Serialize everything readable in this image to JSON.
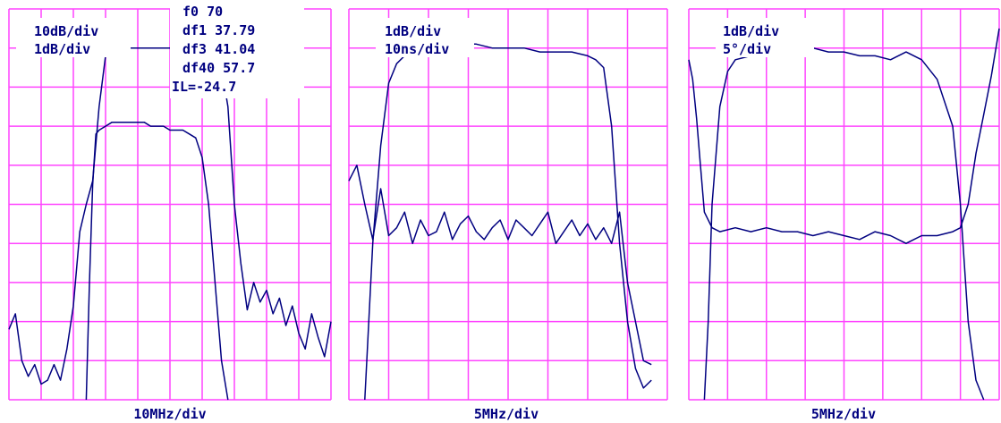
{
  "colors": {
    "grid": "#ff44ff",
    "trace": "#000080",
    "text": "#000080",
    "background": "#ffffff"
  },
  "chart_data": [
    {
      "type": "line",
      "grid": true,
      "grid_divisions": {
        "x": 10,
        "y": 10
      },
      "x_scale": "10MHz/div",
      "y_scales": [
        "10dB/div",
        "1dB/div"
      ],
      "annotations": [
        "f0 70",
        "df1 37.79",
        "df3 41.04",
        "df40 57.7",
        "IL=-24.7"
      ],
      "xlabel": "10MHz/div",
      "ylim": [
        0,
        10
      ],
      "xlim": [
        0,
        10
      ],
      "series": [
        {
          "name": "10dB/div",
          "x": [
            0.0,
            0.2,
            0.4,
            0.6,
            0.8,
            1.0,
            1.2,
            1.4,
            1.6,
            1.8,
            2.0,
            2.2,
            2.4,
            2.6,
            2.8,
            3.0,
            3.2,
            3.4,
            3.6,
            3.8,
            4.0,
            4.2,
            4.4,
            4.6,
            4.8,
            5.0,
            5.2,
            5.4,
            5.6,
            5.8,
            6.0,
            6.2,
            6.4,
            6.6,
            6.8,
            7.0,
            7.2,
            7.4,
            7.6,
            7.8,
            8.0,
            8.2,
            8.4,
            8.6,
            8.8,
            9.0,
            9.2,
            9.4,
            9.6,
            9.8,
            10.0
          ],
          "values": [
            1.8,
            2.2,
            1.0,
            0.6,
            0.9,
            0.4,
            0.5,
            0.9,
            0.5,
            1.3,
            2.4,
            4.3,
            5.0,
            5.6,
            7.5,
            8.8,
            9.0,
            9.0,
            9.0,
            9.0,
            9.0,
            9.0,
            9.0,
            9.0,
            9.0,
            9.0,
            9.0,
            9.0,
            9.0,
            9.0,
            9.0,
            9.0,
            8.9,
            8.5,
            7.5,
            5.0,
            3.5,
            2.3,
            3.0,
            2.5,
            2.8,
            2.2,
            2.6,
            1.9,
            2.4,
            1.7,
            1.3,
            2.2,
            1.6,
            1.1,
            2.0
          ]
        },
        {
          "name": "1dB/div",
          "x": [
            2.4,
            2.5,
            2.6,
            2.7,
            2.8,
            3.0,
            3.2,
            3.4,
            3.6,
            3.8,
            4.0,
            4.2,
            4.4,
            4.6,
            4.8,
            5.0,
            5.2,
            5.4,
            5.6,
            5.8,
            6.0,
            6.2,
            6.4,
            6.6,
            6.8
          ],
          "values": [
            0.0,
            3.0,
            5.5,
            6.8,
            6.9,
            7.0,
            7.1,
            7.1,
            7.1,
            7.1,
            7.1,
            7.1,
            7.0,
            7.0,
            7.0,
            6.9,
            6.9,
            6.9,
            6.8,
            6.7,
            6.2,
            5.0,
            3.0,
            1.0,
            0.0
          ]
        }
      ]
    },
    {
      "type": "line",
      "grid": true,
      "grid_divisions": {
        "x": 8,
        "y": 10
      },
      "x_scale": "5MHz/div",
      "y_scales": [
        "1dB/div",
        "10ns/div"
      ],
      "xlabel": "5MHz/div",
      "ylim": [
        0,
        10
      ],
      "xlim": [
        0,
        8
      ],
      "series": [
        {
          "name": "1dB/div",
          "x": [
            0.4,
            0.6,
            0.8,
            1.0,
            1.2,
            1.4,
            1.6,
            2.0,
            2.4,
            2.8,
            3.2,
            3.6,
            4.0,
            4.4,
            4.8,
            5.2,
            5.6,
            6.0,
            6.2,
            6.4,
            6.6,
            6.8,
            7.0,
            7.2,
            7.4,
            7.6
          ],
          "values": [
            0.0,
            4.0,
            6.5,
            8.1,
            8.6,
            8.8,
            8.9,
            9.0,
            9.0,
            9.1,
            9.1,
            9.0,
            9.0,
            9.0,
            8.9,
            8.9,
            8.9,
            8.8,
            8.7,
            8.5,
            7.0,
            4.0,
            2.0,
            0.8,
            0.3,
            0.5
          ]
        },
        {
          "name": "10ns/div",
          "x": [
            0.0,
            0.2,
            0.4,
            0.6,
            0.8,
            1.0,
            1.2,
            1.4,
            1.6,
            1.8,
            2.0,
            2.2,
            2.4,
            2.6,
            2.8,
            3.0,
            3.2,
            3.4,
            3.6,
            3.8,
            4.0,
            4.2,
            4.4,
            4.6,
            4.8,
            5.0,
            5.2,
            5.4,
            5.6,
            5.8,
            6.0,
            6.2,
            6.4,
            6.6,
            6.8,
            7.0,
            7.2,
            7.4,
            7.6
          ],
          "values": [
            5.6,
            6.0,
            5.0,
            4.1,
            5.4,
            4.2,
            4.4,
            4.8,
            4.0,
            4.6,
            4.2,
            4.3,
            4.8,
            4.1,
            4.5,
            4.7,
            4.3,
            4.1,
            4.4,
            4.6,
            4.1,
            4.6,
            4.4,
            4.2,
            4.5,
            4.8,
            4.0,
            4.3,
            4.6,
            4.2,
            4.5,
            4.1,
            4.4,
            4.0,
            4.8,
            3.0,
            2.0,
            1.0,
            0.9
          ]
        }
      ]
    },
    {
      "type": "line",
      "grid": true,
      "grid_divisions": {
        "x": 8,
        "y": 10
      },
      "x_scale": "5MHz/div",
      "y_scales": [
        "1dB/div",
        "5°/div"
      ],
      "xlabel": "5MHz/div",
      "ylim": [
        0,
        10
      ],
      "xlim": [
        0,
        8
      ],
      "series": [
        {
          "name": "1dB/div",
          "x": [
            0.4,
            0.5,
            0.6,
            0.8,
            1.0,
            1.2,
            1.6,
            2.0,
            2.4,
            2.8,
            3.2,
            3.6,
            4.0,
            4.4,
            4.8,
            5.2,
            5.6,
            6.0,
            6.4,
            6.8,
            7.0,
            7.2,
            7.4,
            7.6
          ],
          "values": [
            0.0,
            2.0,
            5.0,
            7.5,
            8.4,
            8.7,
            8.8,
            8.9,
            8.9,
            9.0,
            9.0,
            8.9,
            8.9,
            8.8,
            8.8,
            8.7,
            8.9,
            8.7,
            8.2,
            7.0,
            5.0,
            2.0,
            0.5,
            0.0
          ]
        },
        {
          "name": "5°/div",
          "x": [
            0.0,
            0.1,
            0.2,
            0.3,
            0.4,
            0.6,
            0.8,
            1.2,
            1.6,
            2.0,
            2.4,
            2.8,
            3.2,
            3.6,
            4.0,
            4.4,
            4.8,
            5.2,
            5.6,
            6.0,
            6.4,
            6.8,
            7.0,
            7.2,
            7.4,
            7.6,
            7.8,
            8.0
          ],
          "values": [
            8.7,
            8.2,
            7.2,
            6.0,
            4.8,
            4.4,
            4.3,
            4.4,
            4.3,
            4.4,
            4.3,
            4.3,
            4.2,
            4.3,
            4.2,
            4.1,
            4.3,
            4.2,
            4.0,
            4.2,
            4.2,
            4.3,
            4.4,
            5.0,
            6.3,
            7.3,
            8.3,
            9.5
          ]
        }
      ]
    }
  ]
}
